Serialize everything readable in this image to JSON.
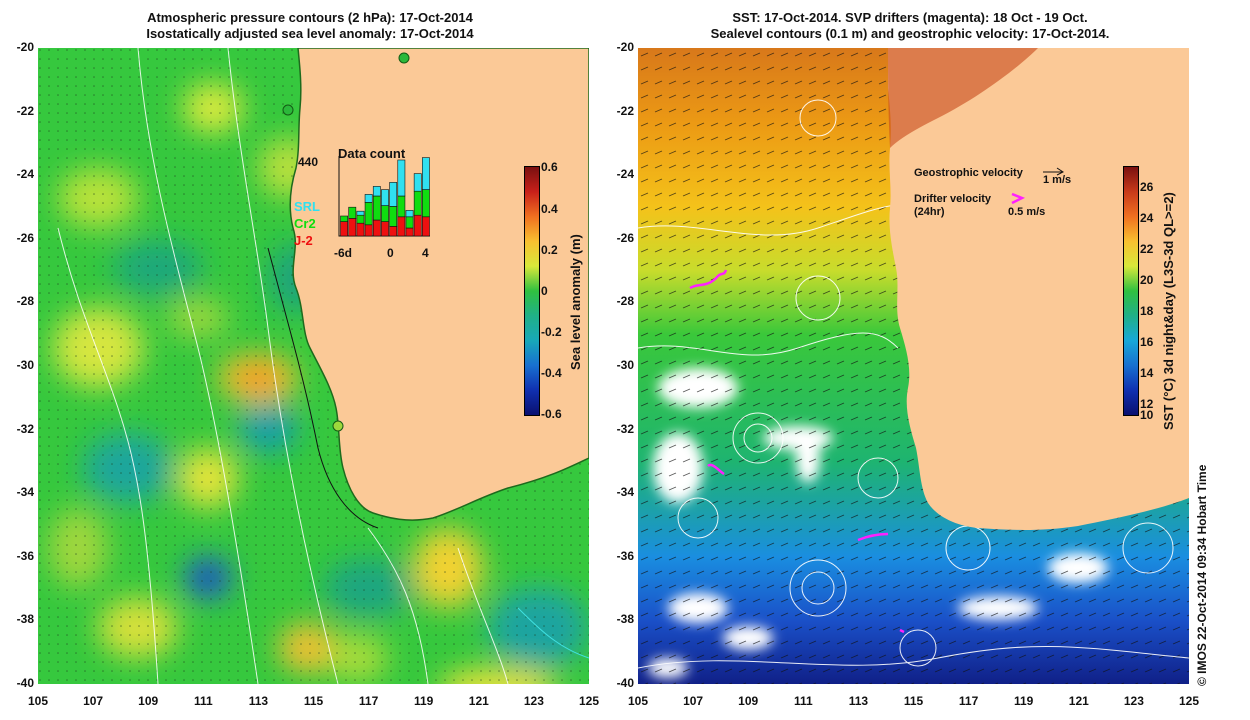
{
  "left_panel": {
    "title_line1": "Atmospheric pressure contours (2 hPa): 17-Oct-2014",
    "title_line2": "Isostatically adjusted sea level anomaly: 17-Oct-2014",
    "colorbar": {
      "label": "Sea level anomaly (m)",
      "ticks": [
        "0.6",
        "0.4",
        "0.2",
        "0",
        "-0.2",
        "-0.4",
        "-0.6"
      ]
    },
    "inset": {
      "title": "Data count",
      "max_count": "440",
      "legend": [
        {
          "name": "SRL",
          "color": "#30e0f0"
        },
        {
          "name": "Cr2",
          "color": "#10dd10"
        },
        {
          "name": "J-2",
          "color": "#ee1010"
        }
      ],
      "x_ticks": [
        "-6d",
        "0",
        "4"
      ],
      "bars": [
        {
          "j2": 0.18,
          "cr2": 0.07,
          "srl": 0.0
        },
        {
          "j2": 0.22,
          "cr2": 0.14,
          "srl": 0.0
        },
        {
          "j2": 0.16,
          "cr2": 0.1,
          "srl": 0.05
        },
        {
          "j2": 0.14,
          "cr2": 0.28,
          "srl": 0.1
        },
        {
          "j2": 0.2,
          "cr2": 0.3,
          "srl": 0.12
        },
        {
          "j2": 0.18,
          "cr2": 0.2,
          "srl": 0.2
        },
        {
          "j2": 0.12,
          "cr2": 0.25,
          "srl": 0.3
        },
        {
          "j2": 0.24,
          "cr2": 0.26,
          "srl": 0.45
        },
        {
          "j2": 0.1,
          "cr2": 0.14,
          "srl": 0.08
        },
        {
          "j2": 0.26,
          "cr2": 0.3,
          "srl": 0.22
        },
        {
          "j2": 0.24,
          "cr2": 0.34,
          "srl": 0.4
        }
      ]
    }
  },
  "right_panel": {
    "title_line1": "SST: 17-Oct-2014. SVP drifters (magenta): 18 Oct - 19 Oct.",
    "title_line2": "Sealevel contours (0.1 m) and geostrophic velocity: 17-Oct-2014.",
    "colorbar": {
      "label": "SST (°C) 3d night&day (L3S-3d QL>=2)",
      "ticks": [
        "26",
        "24",
        "22",
        "20",
        "18",
        "16",
        "14",
        "12",
        "10"
      ]
    },
    "legend": {
      "geo_label": "Geostrophic velocity",
      "geo_scale": "1 m/s",
      "drifter_label": "Drifter velocity",
      "drifter_sub": "(24hr)",
      "drifter_scale": "0.5 m/s"
    }
  },
  "axes": {
    "y_ticks": [
      "-20",
      "-22",
      "-24",
      "-26",
      "-28",
      "-30",
      "-32",
      "-34",
      "-36",
      "-38",
      "-40"
    ],
    "x_ticks": [
      "105",
      "107",
      "109",
      "111",
      "113",
      "115",
      "117",
      "119",
      "121",
      "123",
      "125"
    ]
  },
  "credit": "© IMOS 22-Oct-2014 09:34 Hobart Time",
  "colors": {
    "land": "#fbc997",
    "ocean_green": "#2fc43a",
    "sla_blue": "#1f6fd4",
    "sst_warm": "#e89a14",
    "drifter": "#ff20ff"
  }
}
